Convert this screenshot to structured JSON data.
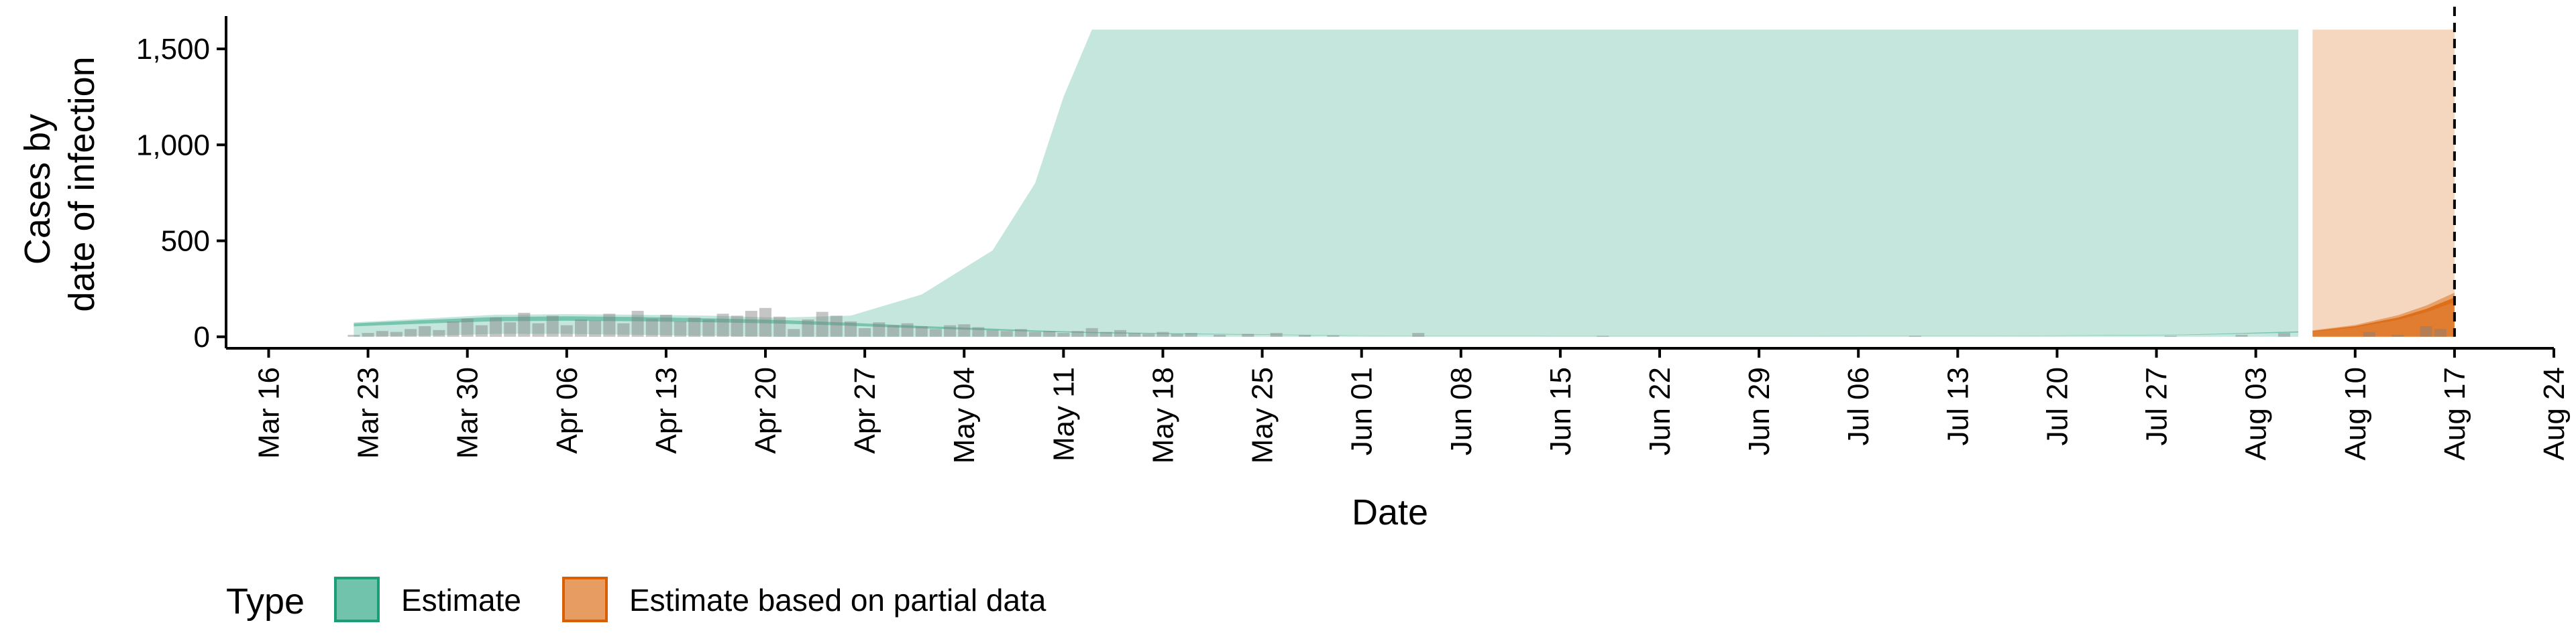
{
  "chart_data": {
    "type": "area",
    "xlabel": "Date",
    "ylabel_lines": [
      "Cases by",
      "date of infection"
    ],
    "y_ticks": [
      0,
      500,
      1000,
      1500
    ],
    "y_tick_labels": [
      "0",
      "500",
      "1,000",
      "1,500"
    ],
    "ylim": [
      -60,
      1650
    ],
    "xlim": [
      "2020-03-13",
      "2020-08-24"
    ],
    "x_ticks": [
      "2020-03-16",
      "2020-03-23",
      "2020-03-30",
      "2020-04-06",
      "2020-04-13",
      "2020-04-20",
      "2020-04-27",
      "2020-05-04",
      "2020-05-11",
      "2020-05-18",
      "2020-05-25",
      "2020-06-01",
      "2020-06-08",
      "2020-06-15",
      "2020-06-22",
      "2020-06-29",
      "2020-07-06",
      "2020-07-13",
      "2020-07-20",
      "2020-07-27",
      "2020-08-03",
      "2020-08-10",
      "2020-08-17",
      "2020-08-24"
    ],
    "x_tick_labels": [
      "Mar 16",
      "Mar 23",
      "Mar 30",
      "Apr 06",
      "Apr 13",
      "Apr 20",
      "Apr 27",
      "May 04",
      "May 11",
      "May 18",
      "May 25",
      "Jun 01",
      "Jun 08",
      "Jun 15",
      "Jun 22",
      "Jun 29",
      "Jul 06",
      "Jul 13",
      "Jul 20",
      "Jul 27",
      "Aug 03",
      "Aug 10",
      "Aug 17",
      "Aug 24"
    ],
    "forecast_date": "2020-08-17",
    "grid": false,
    "legend": {
      "title": "Type",
      "position": "bottom",
      "entries": [
        {
          "label": "Estimate",
          "color": "#1B9E77"
        },
        {
          "label": "Estimate based on partial data",
          "color": "#D95F02"
        }
      ]
    },
    "series": [
      {
        "name": "Estimate",
        "color": "#1B9E77",
        "points": [
          {
            "x": "2020-03-22",
            "low": 0,
            "high": 75,
            "mid": 62
          },
          {
            "x": "2020-03-27",
            "low": 5,
            "high": 95,
            "mid": 78
          },
          {
            "x": "2020-04-01",
            "low": 15,
            "high": 115,
            "mid": 92
          },
          {
            "x": "2020-04-06",
            "low": 15,
            "high": 118,
            "mid": 95
          },
          {
            "x": "2020-04-11",
            "low": 10,
            "high": 115,
            "mid": 92
          },
          {
            "x": "2020-04-16",
            "low": 5,
            "high": 110,
            "mid": 86
          },
          {
            "x": "2020-04-21",
            "low": 0,
            "high": 100,
            "mid": 78
          },
          {
            "x": "2020-04-26",
            "low": 0,
            "high": 110,
            "mid": 65
          },
          {
            "x": "2020-05-01",
            "low": 0,
            "high": 220,
            "mid": 50
          },
          {
            "x": "2020-05-06",
            "low": 0,
            "high": 450,
            "mid": 38
          },
          {
            "x": "2020-05-09",
            "low": 0,
            "high": 800,
            "mid": 30
          },
          {
            "x": "2020-05-11",
            "low": 0,
            "high": 1250,
            "mid": 26
          },
          {
            "x": "2020-05-13",
            "low": 0,
            "high": 1600,
            "mid": 22
          },
          {
            "x": "2020-05-20",
            "low": 0,
            "high": 1600,
            "mid": 15
          },
          {
            "x": "2020-06-01",
            "low": 0,
            "high": 1600,
            "mid": 6
          },
          {
            "x": "2020-06-15",
            "low": 0,
            "high": 1600,
            "mid": 3
          },
          {
            "x": "2020-07-01",
            "low": 0,
            "high": 1600,
            "mid": 3
          },
          {
            "x": "2020-07-15",
            "low": 0,
            "high": 1600,
            "mid": 4
          },
          {
            "x": "2020-07-29",
            "low": 0,
            "high": 1600,
            "mid": 10
          },
          {
            "x": "2020-08-06",
            "low": 0,
            "high": 1600,
            "mid": 25
          }
        ]
      },
      {
        "name": "Estimate based on partial data",
        "color": "#D95F02",
        "points": [
          {
            "x": "2020-08-07",
            "low": 0,
            "high": 1600,
            "mid": 30
          },
          {
            "x": "2020-08-10",
            "low": 0,
            "high": 1600,
            "mid": 55
          },
          {
            "x": "2020-08-13",
            "low": 0,
            "high": 1600,
            "mid": 100
          },
          {
            "x": "2020-08-15",
            "low": 0,
            "high": 1600,
            "mid": 145
          },
          {
            "x": "2020-08-17",
            "low": 0,
            "high": 1600,
            "mid": 205
          }
        ]
      }
    ],
    "reported_cases": [
      {
        "x": "2020-03-22",
        "y": 10
      },
      {
        "x": "2020-03-23",
        "y": 20
      },
      {
        "x": "2020-03-24",
        "y": 30
      },
      {
        "x": "2020-03-25",
        "y": 25
      },
      {
        "x": "2020-03-26",
        "y": 40
      },
      {
        "x": "2020-03-27",
        "y": 55
      },
      {
        "x": "2020-03-28",
        "y": 35
      },
      {
        "x": "2020-03-29",
        "y": 80
      },
      {
        "x": "2020-03-30",
        "y": 95
      },
      {
        "x": "2020-03-31",
        "y": 60
      },
      {
        "x": "2020-04-01",
        "y": 100
      },
      {
        "x": "2020-04-02",
        "y": 75
      },
      {
        "x": "2020-04-03",
        "y": 125
      },
      {
        "x": "2020-04-04",
        "y": 70
      },
      {
        "x": "2020-04-05",
        "y": 110
      },
      {
        "x": "2020-04-06",
        "y": 60
      },
      {
        "x": "2020-04-07",
        "y": 90
      },
      {
        "x": "2020-04-08",
        "y": 85
      },
      {
        "x": "2020-04-09",
        "y": 120
      },
      {
        "x": "2020-04-10",
        "y": 70
      },
      {
        "x": "2020-04-11",
        "y": 135
      },
      {
        "x": "2020-04-12",
        "y": 95
      },
      {
        "x": "2020-04-13",
        "y": 115
      },
      {
        "x": "2020-04-14",
        "y": 80
      },
      {
        "x": "2020-04-15",
        "y": 100
      },
      {
        "x": "2020-04-16",
        "y": 90
      },
      {
        "x": "2020-04-17",
        "y": 120
      },
      {
        "x": "2020-04-18",
        "y": 110
      },
      {
        "x": "2020-04-19",
        "y": 135
      },
      {
        "x": "2020-04-20",
        "y": 150
      },
      {
        "x": "2020-04-21",
        "y": 105
      },
      {
        "x": "2020-04-22",
        "y": 40
      },
      {
        "x": "2020-04-23",
        "y": 90
      },
      {
        "x": "2020-04-24",
        "y": 130
      },
      {
        "x": "2020-04-25",
        "y": 110
      },
      {
        "x": "2020-04-26",
        "y": 80
      },
      {
        "x": "2020-04-27",
        "y": 45
      },
      {
        "x": "2020-04-28",
        "y": 75
      },
      {
        "x": "2020-04-29",
        "y": 60
      },
      {
        "x": "2020-04-30",
        "y": 70
      },
      {
        "x": "2020-05-01",
        "y": 55
      },
      {
        "x": "2020-05-02",
        "y": 40
      },
      {
        "x": "2020-05-03",
        "y": 60
      },
      {
        "x": "2020-05-04",
        "y": 65
      },
      {
        "x": "2020-05-05",
        "y": 50
      },
      {
        "x": "2020-05-06",
        "y": 35
      },
      {
        "x": "2020-05-07",
        "y": 30
      },
      {
        "x": "2020-05-08",
        "y": 40
      },
      {
        "x": "2020-05-09",
        "y": 25
      },
      {
        "x": "2020-05-10",
        "y": 30
      },
      {
        "x": "2020-05-11",
        "y": 20
      },
      {
        "x": "2020-05-12",
        "y": 30
      },
      {
        "x": "2020-05-13",
        "y": 45
      },
      {
        "x": "2020-05-14",
        "y": 25
      },
      {
        "x": "2020-05-15",
        "y": 35
      },
      {
        "x": "2020-05-16",
        "y": 20
      },
      {
        "x": "2020-05-17",
        "y": 15
      },
      {
        "x": "2020-05-18",
        "y": 25
      },
      {
        "x": "2020-05-19",
        "y": 15
      },
      {
        "x": "2020-05-20",
        "y": 20
      },
      {
        "x": "2020-05-22",
        "y": 10
      },
      {
        "x": "2020-05-24",
        "y": 15
      },
      {
        "x": "2020-05-26",
        "y": 20
      },
      {
        "x": "2020-05-28",
        "y": 10
      },
      {
        "x": "2020-05-30",
        "y": 8
      },
      {
        "x": "2020-06-05",
        "y": 20
      },
      {
        "x": "2020-06-18",
        "y": 5
      },
      {
        "x": "2020-07-10",
        "y": 5
      },
      {
        "x": "2020-07-28",
        "y": 5
      },
      {
        "x": "2020-08-02",
        "y": 10
      },
      {
        "x": "2020-08-05",
        "y": 20
      },
      {
        "x": "2020-08-11",
        "y": 25
      },
      {
        "x": "2020-08-13",
        "y": 10
      },
      {
        "x": "2020-08-15",
        "y": 55
      },
      {
        "x": "2020-08-16",
        "y": 40
      }
    ]
  }
}
